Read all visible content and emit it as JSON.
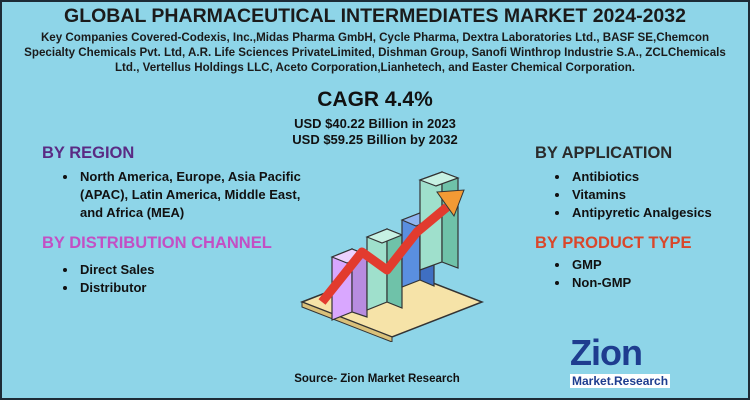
{
  "title": "GLOBAL PHARMACEUTICAL INTERMEDIATES MARKET 2024-2032",
  "key_companies": "Key Companies Covered-Codexis, Inc.,Midas Pharma GmbH, Cycle Pharma, Dextra Laboratories Ltd., BASF SE,Chemcon Specialty Chemicals Pvt. Ltd, A.R. Life Sciences PrivateLimited, Dishman Group, Sanofi Winthrop Industrie S.A., ZCLChemicals Ltd., Vertellus Holdings LLC, Aceto Corporation,Lianhetech, and Easter Chemical Corporation.",
  "cagr": "CAGR 4.4%",
  "market_values": [
    "USD $40.22 Billion  in 2023",
    "USD $59.25 Billion  by 2032"
  ],
  "sections": [
    {
      "heading": "BY REGION",
      "items": [
        "North America, Europe, Asia Pacific (APAC), Latin America, Middle East, and Africa (MEA)"
      ]
    },
    {
      "heading": "BY DISTRIBUTION CHANNEL",
      "items": [
        "Direct Sales",
        "Distributor"
      ]
    },
    {
      "heading": "BY APPLICATION",
      "items": [
        "Antibiotics",
        "Vitamins",
        "Antipyretic Analgesics"
      ]
    },
    {
      "heading": "BY PRODUCT TYPE",
      "items": [
        "GMP",
        "Non-GMP"
      ]
    }
  ],
  "source": "Source- Zion Market Research",
  "logo": {
    "brand": "Zion",
    "tagline": "Market.Research"
  }
}
